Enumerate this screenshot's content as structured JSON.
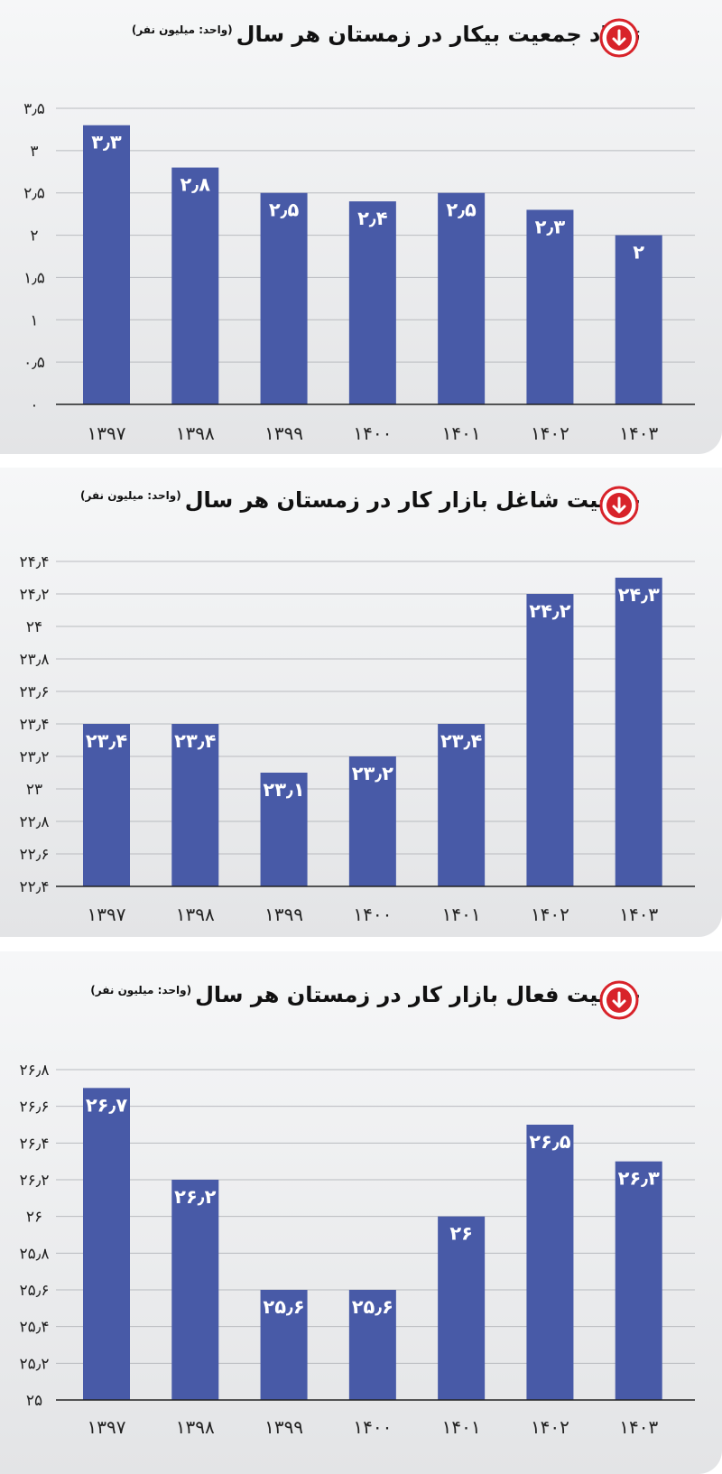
{
  "accent": "#485aa7",
  "icon_color": "#d8232a",
  "icons": {
    "down": "down-arrow-circle-icon"
  },
  "chart_data": [
    {
      "type": "bar",
      "title": "تعداد جمعیت بیکار در زمستان هر سال",
      "unit": "(واحد: میلیون نفر)",
      "categories": [
        "۱۳۹۷",
        "۱۳۹۸",
        "۱۳۹۹",
        "۱۴۰۰",
        "۱۴۰۱",
        "۱۴۰۲",
        "۱۴۰۳"
      ],
      "values": [
        3.3,
        2.8,
        2.5,
        2.4,
        2.5,
        2.3,
        2.0
      ],
      "value_labels": [
        "۳٫۳",
        "۲٫۸",
        "۲٫۵",
        "۲٫۴",
        "۲٫۵",
        "۲٫۳",
        "۲"
      ],
      "ylim": [
        0,
        3.5
      ],
      "yticks": [
        0,
        0.5,
        1,
        1.5,
        2,
        2.5,
        3,
        3.5
      ],
      "ytick_labels": [
        "۰",
        "۰٫۵",
        "۱",
        "۱٫۵",
        "۲",
        "۲٫۵",
        "۳",
        "۳٫۵"
      ],
      "grid": true
    },
    {
      "type": "bar",
      "title": "جمعیت شاغل بازار کار در زمستان هر سال",
      "unit": "(واحد: میلیون نفر)",
      "categories": [
        "۱۳۹۷",
        "۱۳۹۸",
        "۱۳۹۹",
        "۱۴۰۰",
        "۱۴۰۱",
        "۱۴۰۲",
        "۱۴۰۳"
      ],
      "values": [
        23.4,
        23.4,
        23.1,
        23.2,
        23.4,
        24.2,
        24.3
      ],
      "value_labels": [
        "۲۳٫۴",
        "۲۳٫۴",
        "۲۳٫۱",
        "۲۳٫۲",
        "۲۳٫۴",
        "۲۴٫۲",
        "۲۴٫۳"
      ],
      "ylim": [
        22.4,
        24.4
      ],
      "yticks": [
        22.4,
        22.6,
        22.8,
        23,
        23.2,
        23.4,
        23.6,
        23.8,
        24,
        24.2,
        24.4
      ],
      "ytick_labels": [
        "۲۲٫۴",
        "۲۲٫۶",
        "۲۲٫۸",
        "۲۳",
        "۲۳٫۲",
        "۲۳٫۴",
        "۲۳٫۶",
        "۲۳٫۸",
        "۲۴",
        "۲۴٫۲",
        "۲۴٫۴"
      ],
      "grid": true
    },
    {
      "type": "bar",
      "title": "جمعیت فعال بازار کار در زمستان هر سال",
      "unit": "(واحد: میلیون نفر)",
      "categories": [
        "۱۳۹۷",
        "۱۳۹۸",
        "۱۳۹۹",
        "۱۴۰۰",
        "۱۴۰۱",
        "۱۴۰۲",
        "۱۴۰۳"
      ],
      "values": [
        26.7,
        26.2,
        25.6,
        25.6,
        26.0,
        26.5,
        26.3
      ],
      "value_labels": [
        "۲۶٫۷",
        "۲۶٫۲",
        "۲۵٫۶",
        "۲۵٫۶",
        "۲۶",
        "۲۶٫۵",
        "۲۶٫۳"
      ],
      "ylim": [
        25,
        26.8
      ],
      "yticks": [
        25,
        25.2,
        25.4,
        25.6,
        25.8,
        26,
        26.2,
        26.4,
        26.6,
        26.8
      ],
      "ytick_labels": [
        "۲۵",
        "۲۵٫۲",
        "۲۵٫۴",
        "۲۵٫۶",
        "۲۵٫۸",
        "۲۶",
        "۲۶٫۲",
        "۲۶٫۴",
        "۲۶٫۶",
        "۲۶٫۸"
      ],
      "grid": true
    }
  ]
}
